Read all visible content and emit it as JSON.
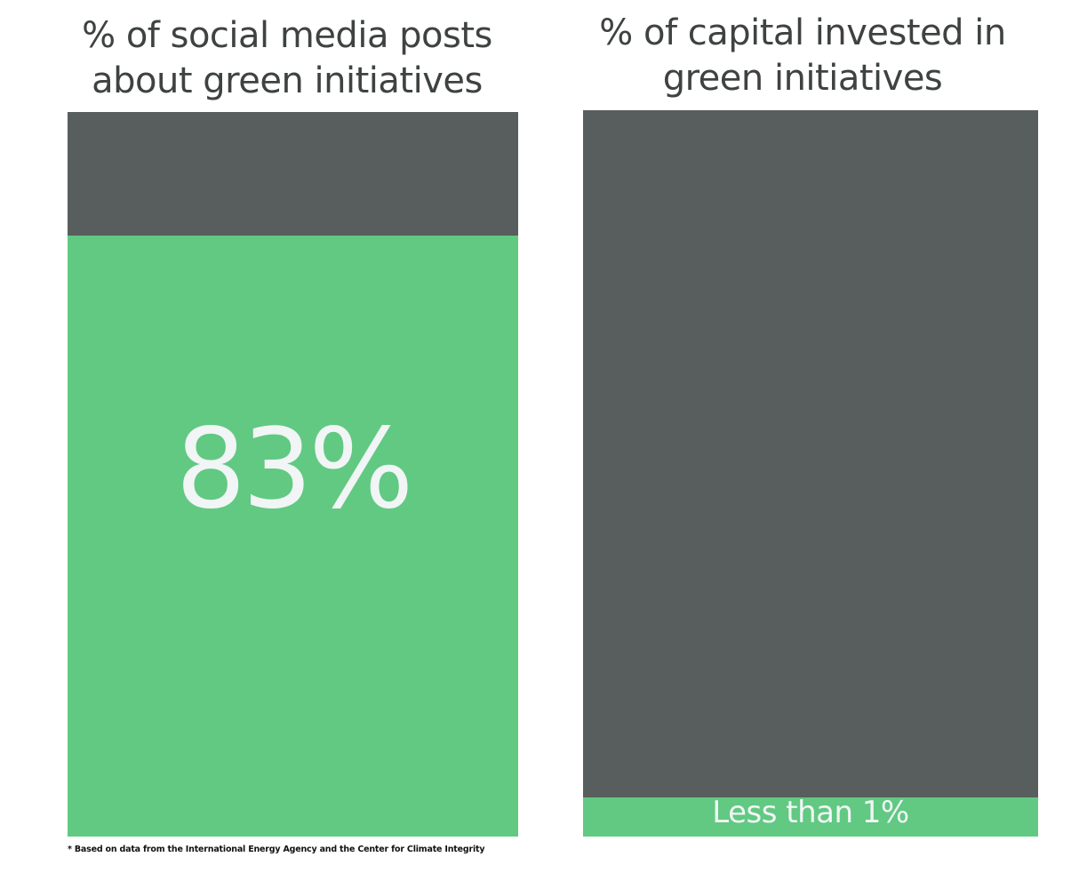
{
  "colors": {
    "green": "#61c982",
    "gray": "#585d5d",
    "title": "#3f4242",
    "label": "#f1f5f5"
  },
  "chart_data": [
    {
      "type": "bar",
      "stacked": true,
      "title": "% of social media posts about green initiatives",
      "value_label": "83%",
      "values": [
        83,
        17
      ],
      "ylim": [
        0,
        100
      ],
      "segment_colors": [
        "#61c982",
        "#585d5d"
      ]
    },
    {
      "type": "bar",
      "stacked": true,
      "title": "% of capital invested in green initiatives",
      "value_label": "Less than 1%",
      "values": [
        1,
        99
      ],
      "ylim": [
        0,
        100
      ],
      "segment_colors": [
        "#61c982",
        "#585d5d"
      ]
    }
  ],
  "footnote": "* Based on data from the International Energy Agency and the Center for Climate Integrity"
}
